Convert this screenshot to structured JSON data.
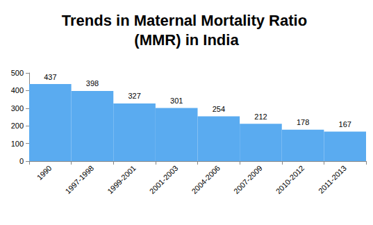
{
  "chart_data": {
    "type": "bar",
    "title": "Trends in Maternal Mortality Ratio (MMR) in India",
    "categories": [
      "1990",
      "1997-1998",
      "1999-2001",
      "2001-2003",
      "2004-2006",
      "2007-2009",
      "2010-2012",
      "2011-2013"
    ],
    "values": [
      437,
      398,
      327,
      301,
      254,
      212,
      178,
      167
    ],
    "color": "#5aabf0",
    "ylim": [
      0,
      500
    ],
    "yticks": [
      0,
      100,
      200,
      300,
      400,
      500
    ],
    "grid": false,
    "data_labels": true
  }
}
